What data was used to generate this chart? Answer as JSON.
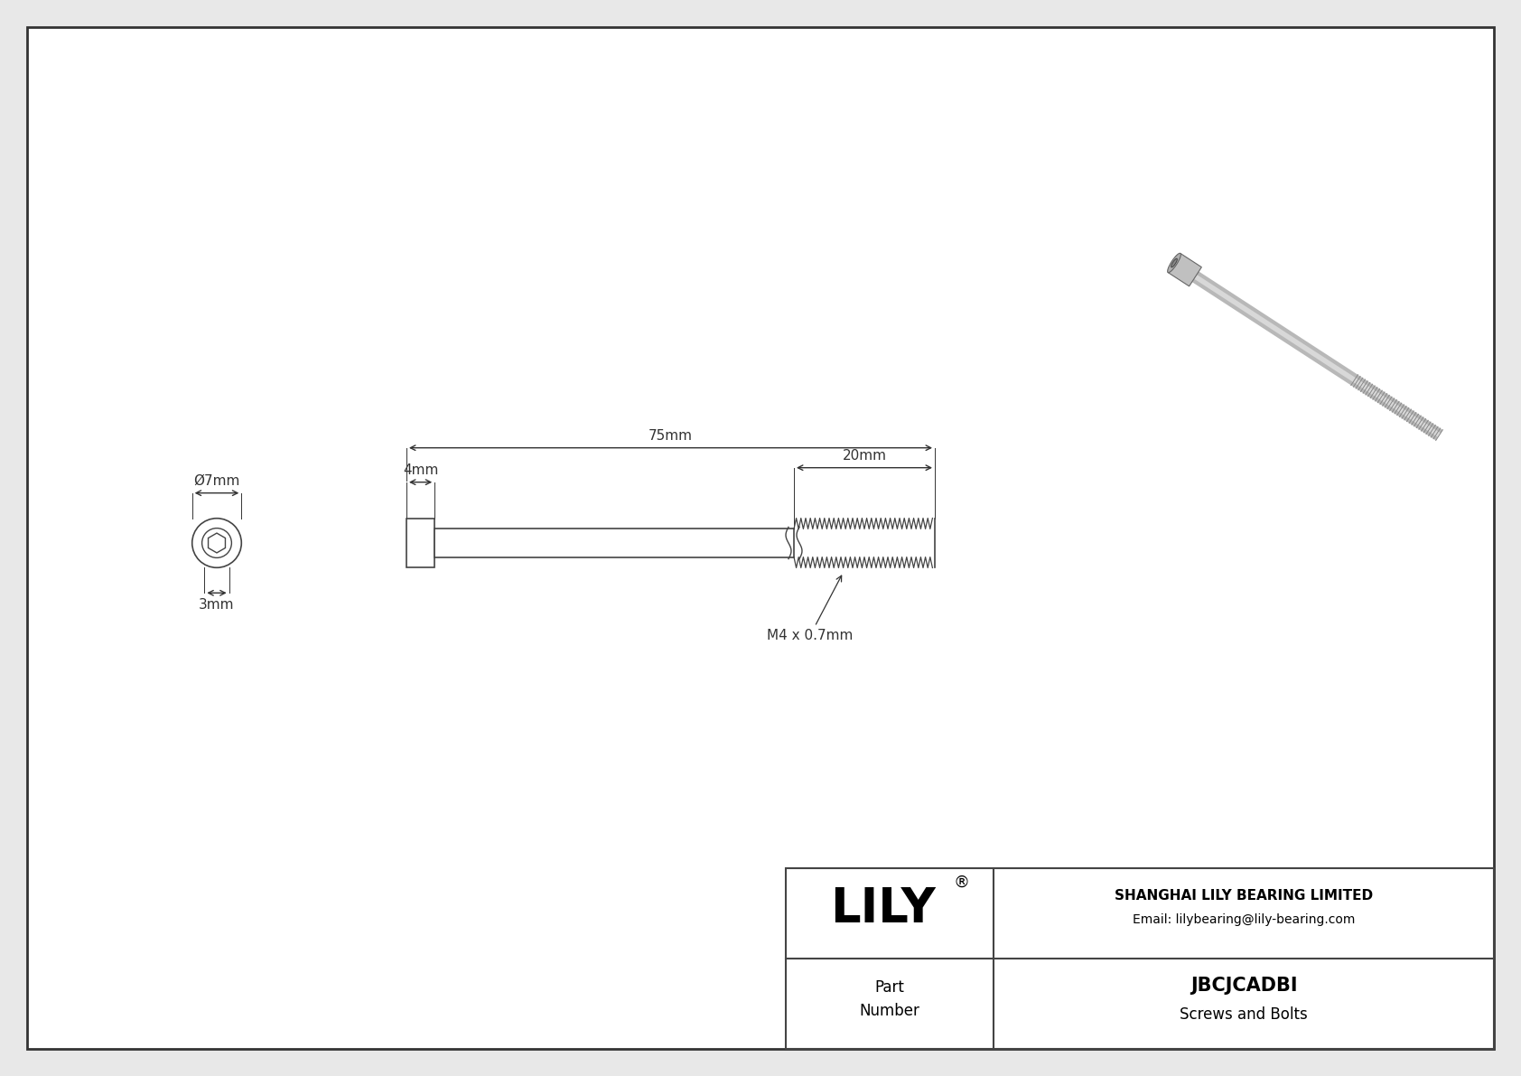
{
  "bg_color": "#e8e8e8",
  "drawing_bg": "#ffffff",
  "border_color": "#333333",
  "line_color": "#444444",
  "dim_color": "#333333",
  "title": "JBCJCADBI",
  "subtitle": "Screws and Bolts",
  "company": "SHANGHAI LILY BEARING LIMITED",
  "email": "Email: lilybearing@lily-bearing.com",
  "part_label": "Part\nNumber",
  "logo": "LILY",
  "logo_super": "®",
  "dim_head_width": "Ø7mm",
  "dim_head_height": "3mm",
  "dim_total": "75mm",
  "dim_thread": "20mm",
  "dim_head_len": "4mm",
  "dim_thread_label": "M4 x 0.7mm"
}
